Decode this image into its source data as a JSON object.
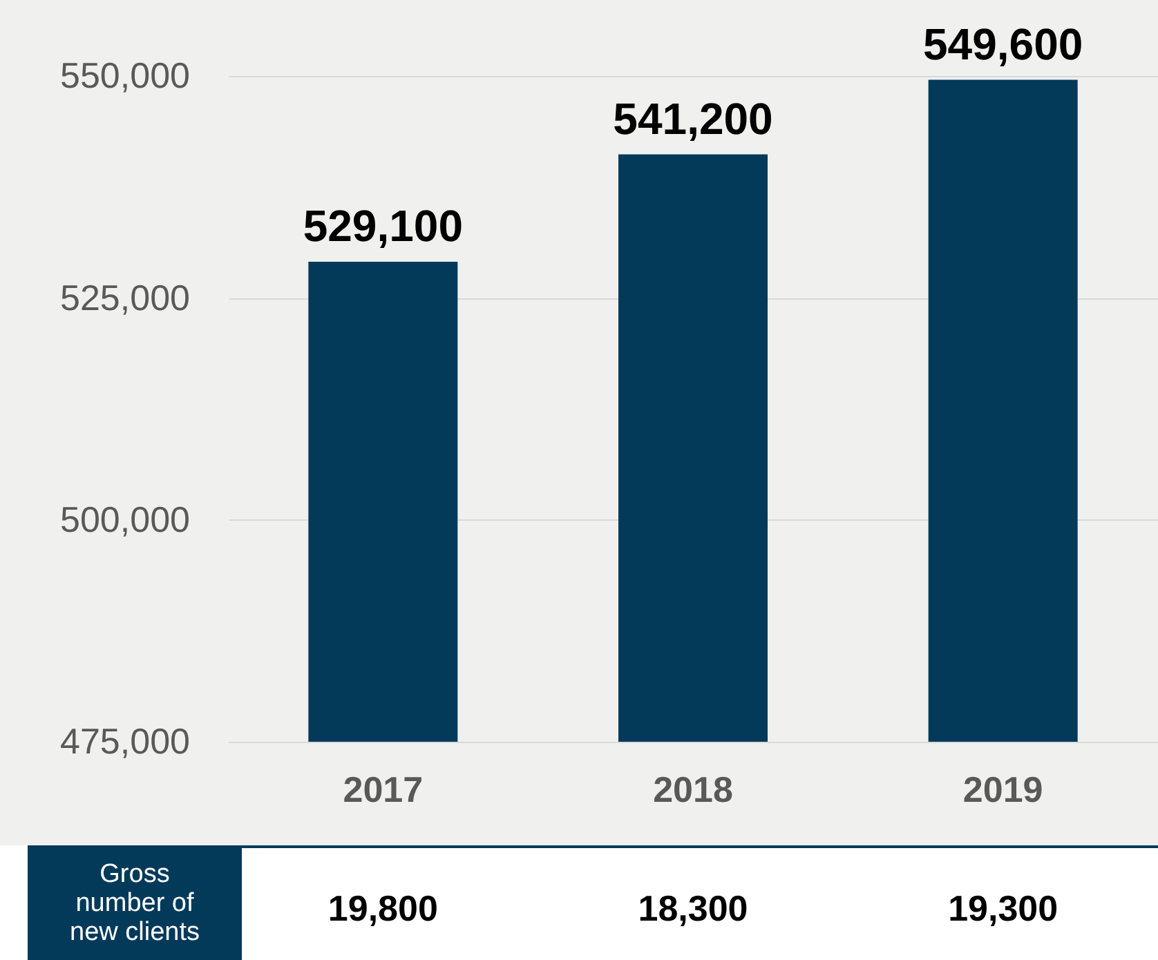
{
  "chart_data": {
    "type": "bar",
    "categories": [
      "2017",
      "2018",
      "2019"
    ],
    "values": [
      529100,
      541200,
      549600
    ],
    "color": "#033a5a",
    "value_labels": [
      "529,100",
      "541,200",
      "549,600"
    ],
    "ylim": [
      475000,
      558600
    ],
    "yticks": [
      {
        "value": 475000,
        "label": "475,000"
      },
      {
        "value": 500000,
        "label": "500,000"
      },
      {
        "value": 525000,
        "label": "525,000"
      },
      {
        "value": 550000,
        "label": "550,000"
      }
    ],
    "grid": "y",
    "annotations": [
      "Gross\nnumber of\nnew clients",
      "19,800",
      "18,300",
      "19,300"
    ]
  }
}
